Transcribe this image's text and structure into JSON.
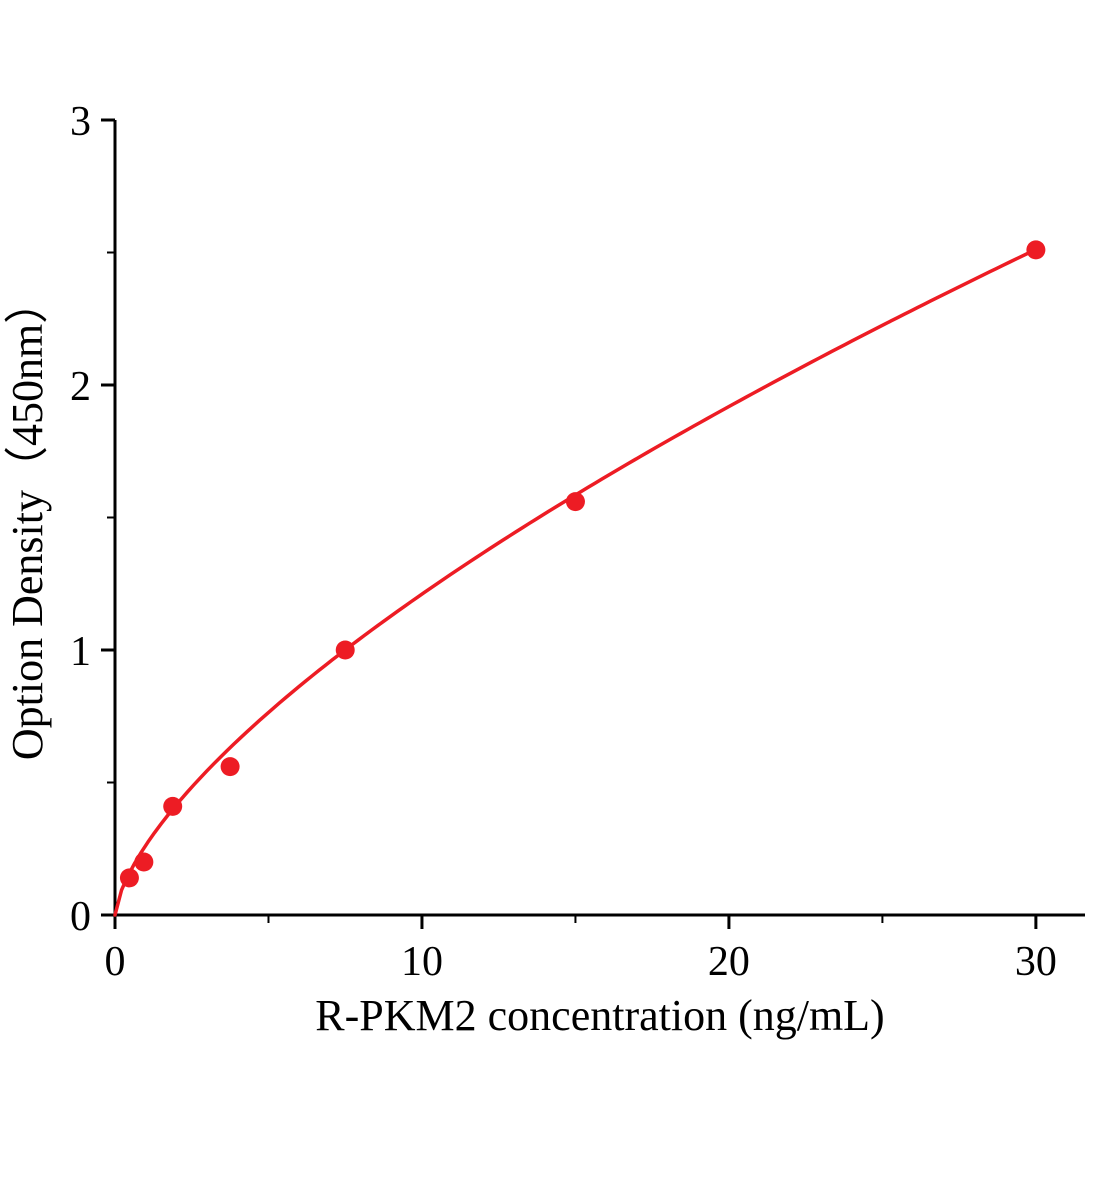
{
  "chart_data": {
    "type": "scatter",
    "title": "",
    "xlabel": "R-PKM2 concentration (ng/mL)",
    "ylabel": "Option Density（450nm）",
    "x": [
      0.47,
      0.94,
      1.88,
      3.75,
      7.5,
      15,
      30
    ],
    "y": [
      0.14,
      0.2,
      0.41,
      0.56,
      1.0,
      1.56,
      2.51
    ],
    "fit_curve": {
      "type": "power",
      "a": 0.2625,
      "b": 0.664,
      "x_start": 0,
      "x_end": 30
    },
    "xlim": [
      0,
      31.6
    ],
    "ylim": [
      0,
      3
    ],
    "xticks": [
      0,
      10,
      20,
      30
    ],
    "yticks": [
      0,
      1,
      2,
      3
    ],
    "x_minor_ticks": [
      5,
      15,
      25
    ],
    "y_minor_ticks": [
      0.5,
      1.5,
      2.5
    ],
    "grid": false,
    "legend": null,
    "line_color": "#ed1c24",
    "marker_color": "#ed1c24",
    "axis_color": "#000000"
  }
}
